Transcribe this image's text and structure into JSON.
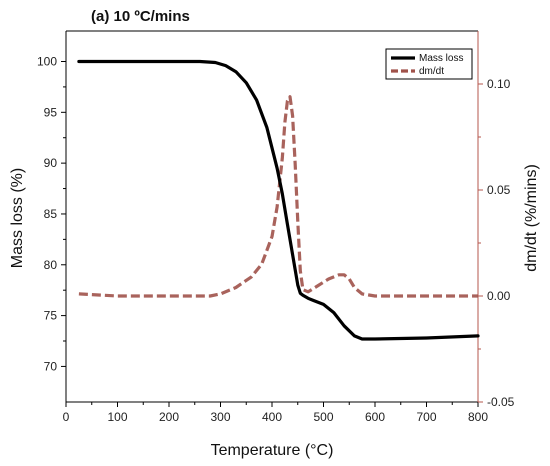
{
  "chart_data": {
    "type": "line",
    "title": "(a) 10 ºC/mins",
    "xlabel": "Temperature (°C)",
    "ylabel_left": "Mass loss (%)",
    "ylabel_right": "dm/dt (%/mins)",
    "xlim": [
      0,
      800
    ],
    "ylim_left": [
      66.5,
      103
    ],
    "ylim_right": [
      -0.05,
      0.125
    ],
    "x_ticks": [
      0,
      100,
      200,
      300,
      400,
      500,
      600,
      700,
      800
    ],
    "y_left_ticks": [
      70,
      75,
      80,
      85,
      90,
      95,
      100
    ],
    "y_right_ticks": [
      -0.05,
      0.0,
      0.05,
      0.1
    ],
    "y_right_tick_labels": [
      "-0.05",
      "0.00",
      "0.05",
      "0.10"
    ],
    "grid": false,
    "legend": "top-right",
    "colors": {
      "mass_loss": "#000000",
      "dmdt": "#a0524a",
      "right_axis": "#b5574e"
    },
    "series": [
      {
        "name": "Mass loss",
        "axis": "left",
        "style": "solid",
        "x": [
          25,
          100,
          200,
          260,
          290,
          310,
          330,
          350,
          370,
          390,
          410,
          420,
          430,
          440,
          445,
          450,
          455,
          460,
          470,
          480,
          500,
          520,
          540,
          560,
          575,
          600,
          700,
          800
        ],
        "y": [
          100.0,
          100.0,
          100.0,
          100.0,
          99.9,
          99.6,
          99.0,
          97.9,
          96.2,
          93.5,
          89.5,
          87.0,
          84.0,
          81.0,
          79.5,
          78.0,
          77.2,
          77.0,
          76.7,
          76.5,
          76.1,
          75.3,
          74.0,
          73.0,
          72.7,
          72.7,
          72.8,
          73.0
        ]
      },
      {
        "name": "dm/dt",
        "axis": "right",
        "style": "dashed",
        "x": [
          25,
          100,
          200,
          280,
          300,
          330,
          360,
          380,
          400,
          410,
          420,
          425,
          430,
          435,
          440,
          445,
          450,
          455,
          460,
          470,
          490,
          510,
          530,
          540,
          550,
          560,
          575,
          600,
          700,
          800
        ],
        "y": [
          0.001,
          0.0,
          0.0,
          0.0,
          0.001,
          0.004,
          0.009,
          0.015,
          0.028,
          0.042,
          0.065,
          0.082,
          0.092,
          0.094,
          0.085,
          0.062,
          0.035,
          0.012,
          0.003,
          0.002,
          0.005,
          0.008,
          0.01,
          0.01,
          0.008,
          0.004,
          0.001,
          0.0,
          0.0,
          0.0
        ]
      }
    ]
  }
}
